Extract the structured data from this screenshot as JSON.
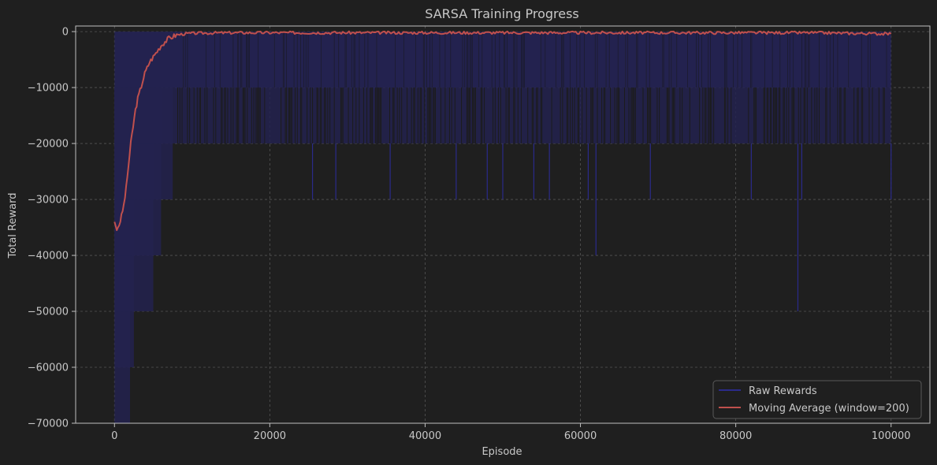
{
  "chart_data": {
    "type": "line",
    "title": "SARSA Training Progress",
    "xlabel": "Episode",
    "ylabel": "Total Reward",
    "xlim": [
      -5000,
      105000
    ],
    "ylim": [
      -70000,
      1000
    ],
    "x_ticks": [
      0,
      20000,
      40000,
      60000,
      80000,
      100000
    ],
    "x_tick_labels": [
      "0",
      "20000",
      "40000",
      "60000",
      "80000",
      "100000"
    ],
    "y_ticks": [
      0,
      -10000,
      -20000,
      -30000,
      -40000,
      -50000,
      -60000,
      -70000
    ],
    "y_tick_labels": [
      "0",
      "−10000",
      "−20000",
      "−30000",
      "−40000",
      "−50000",
      "−60000",
      "−70000"
    ],
    "grid": true,
    "legend_position": "bottom-right",
    "legend": [
      "Raw Rewards",
      "Moving Average (window=200)"
    ],
    "colors": {
      "background": "#1f1f1f",
      "text": "#c8c8c8",
      "grid": "#555555",
      "axis": "#bfbfbf",
      "raw_fill": "#23224f",
      "raw_line": "#2a2a8a",
      "moving_average": "#c0504d"
    },
    "series": [
      {
        "name": "Raw Rewards",
        "style": "filled-spikes",
        "x": [
          0,
          100000
        ],
        "base": -10000,
        "dense_range": [
          0,
          100000
        ],
        "drops": [
          {
            "x_start": 0,
            "x_end": 2000,
            "min": -70000
          },
          {
            "x_start": 0,
            "x_end": 2500,
            "min": -60000
          },
          {
            "x_start": 0,
            "x_end": 5000,
            "min": -50000
          },
          {
            "x_start": 0,
            "x_end": 6000,
            "min": -40000
          },
          {
            "x_start": 0,
            "x_end": 7500,
            "min": -30000
          },
          {
            "x_start": 0,
            "x_end": 100000,
            "min": -20000
          }
        ],
        "isolated_spikes": [
          {
            "x": 25500,
            "y": -30000
          },
          {
            "x": 28500,
            "y": -30000
          },
          {
            "x": 35500,
            "y": -30000
          },
          {
            "x": 44000,
            "y": -30000
          },
          {
            "x": 48000,
            "y": -30000
          },
          {
            "x": 50000,
            "y": -30000
          },
          {
            "x": 54000,
            "y": -30000
          },
          {
            "x": 56000,
            "y": -30000
          },
          {
            "x": 61000,
            "y": -30000
          },
          {
            "x": 62000,
            "y": -40000
          },
          {
            "x": 69000,
            "y": -30000
          },
          {
            "x": 82000,
            "y": -30000
          },
          {
            "x": 88000,
            "y": -50000
          },
          {
            "x": 88500,
            "y": -30000
          },
          {
            "x": 100000,
            "y": -30000
          }
        ]
      },
      {
        "name": "Moving Average (window=200)",
        "style": "line",
        "x": [
          0,
          300,
          600,
          900,
          1200,
          1500,
          1800,
          2100,
          2400,
          2700,
          3000,
          3300,
          3600,
          3900,
          4200,
          4500,
          5000,
          5500,
          6000,
          6500,
          7000,
          7500,
          8000,
          9000,
          10000,
          12000,
          15000,
          20000,
          25000,
          30000,
          40000,
          50000,
          60000,
          70000,
          80000,
          90000,
          100000
        ],
        "y": [
          -34000,
          -35500,
          -34500,
          -33000,
          -31000,
          -28000,
          -24000,
          -20000,
          -17000,
          -14000,
          -12000,
          -10500,
          -9000,
          -7500,
          -6500,
          -5500,
          -4500,
          -3500,
          -2500,
          -1800,
          -1200,
          -900,
          -600,
          -400,
          -300,
          -250,
          -200,
          -200,
          -200,
          -200,
          -200,
          -200,
          -200,
          -200,
          -200,
          -200,
          -400
        ]
      }
    ]
  }
}
